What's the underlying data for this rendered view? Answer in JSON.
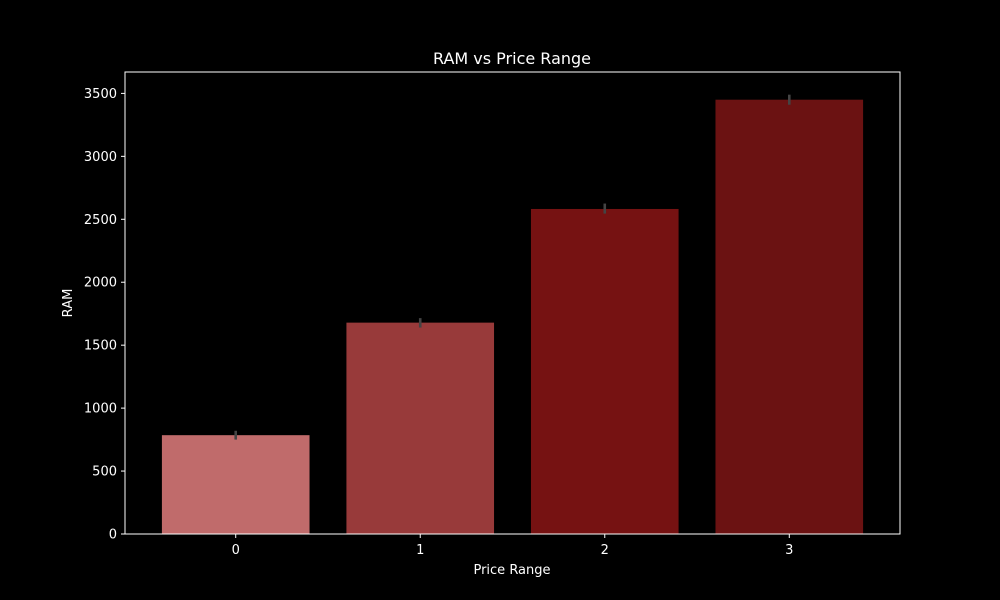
{
  "chart_data": {
    "type": "bar",
    "title": "RAM vs Price Range",
    "xlabel": "Price Range",
    "ylabel": "RAM",
    "categories": [
      "0",
      "1",
      "2",
      "3"
    ],
    "values": [
      785,
      1679,
      2582,
      3450
    ],
    "error_bars": [
      {
        "low": 750,
        "high": 820
      },
      {
        "low": 1640,
        "high": 1715
      },
      {
        "low": 2545,
        "high": 2625
      },
      {
        "low": 3410,
        "high": 3490
      }
    ],
    "bar_colors": [
      "#c06b6b",
      "#983a3a",
      "#761212",
      "#6b1212"
    ],
    "error_color": "#444444",
    "ylim": [
      0,
      3670
    ],
    "yticks": [
      0,
      500,
      1000,
      1500,
      2000,
      2500,
      3000,
      3500
    ],
    "grid": false,
    "background": "#000000",
    "axis_color": "#ffffff"
  }
}
